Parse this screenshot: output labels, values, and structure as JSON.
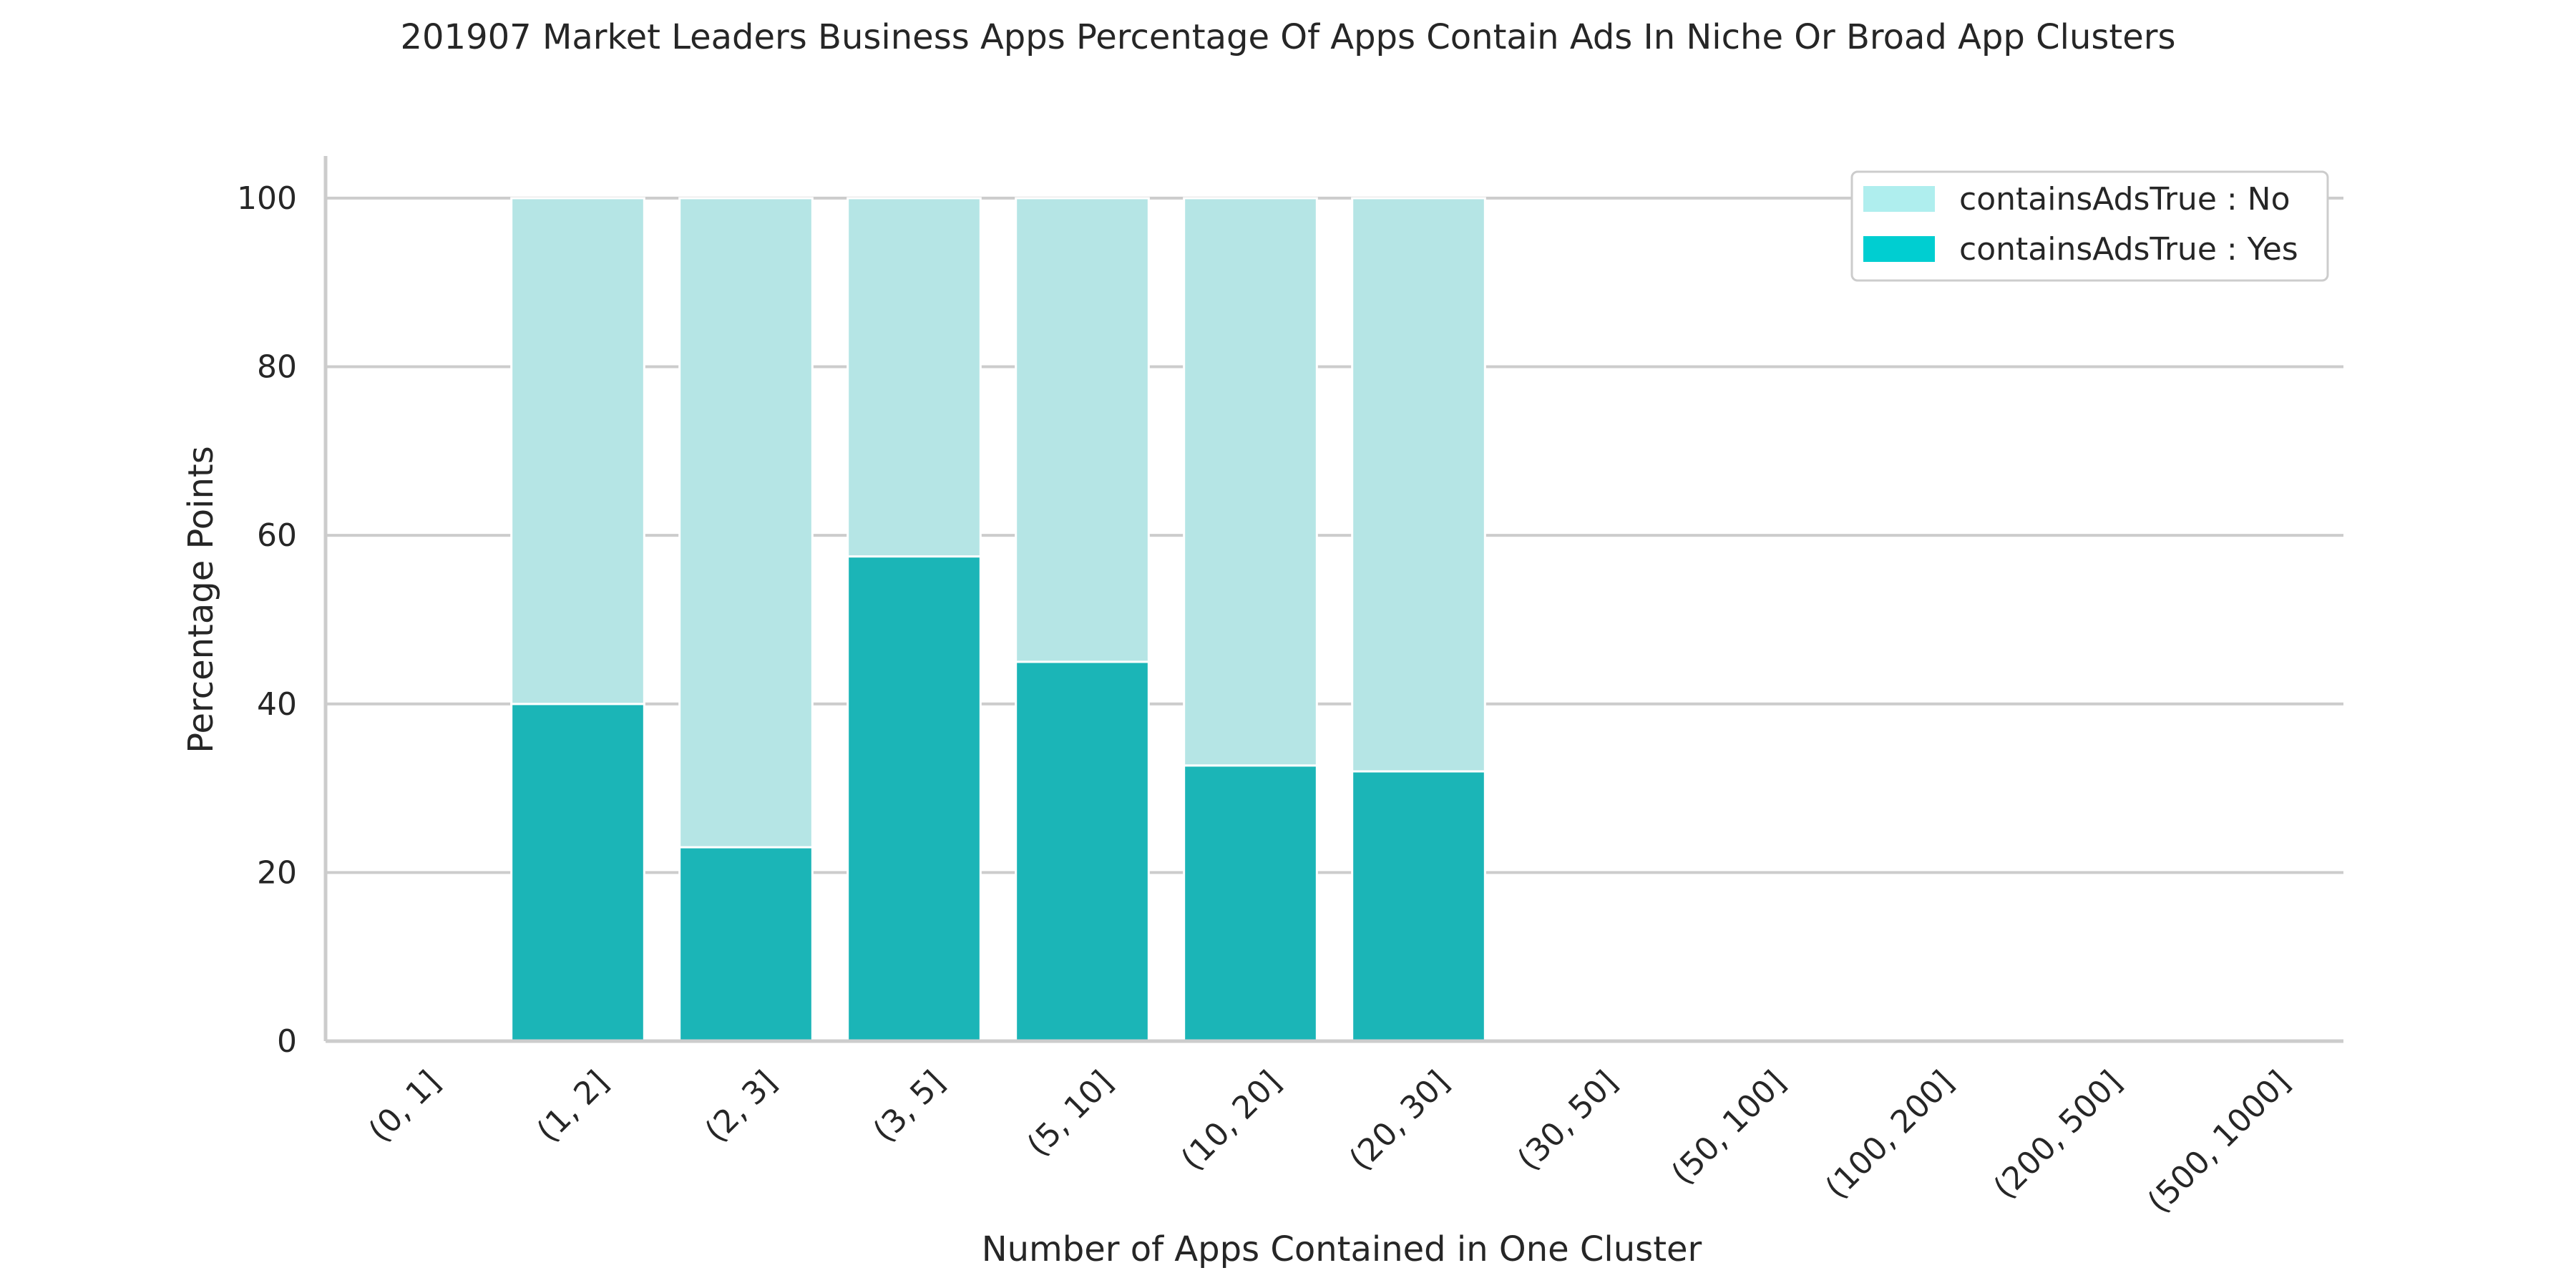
{
  "chart_data": {
    "type": "bar",
    "stacked": true,
    "title": "201907 Market Leaders Business Apps Percentage Of Apps Contain Ads In Niche Or Broad App Clusters",
    "xlabel": "Number of Apps Contained in One Cluster",
    "ylabel": "Percentage Points",
    "ylim": [
      0,
      105
    ],
    "yticks": [
      0,
      20,
      40,
      60,
      80,
      100
    ],
    "grid": true,
    "legend_position": "top-right",
    "categories": [
      "(0, 1]",
      "(1, 2]",
      "(2, 3]",
      "(3, 5]",
      "(5, 10]",
      "(10, 20]",
      "(20, 30]",
      "(30, 50]",
      "(50, 100]",
      "(100, 200]",
      "(200, 500]",
      "(500, 1000]"
    ],
    "series": [
      {
        "name": "containsAdsTrue : Yes",
        "color": "#1bb5b7",
        "legend_color": "#00ced1",
        "values": [
          0,
          40,
          23,
          57.5,
          45,
          32.7,
          32,
          0,
          0,
          0,
          0,
          0
        ]
      },
      {
        "name": "containsAdsTrue : No",
        "color": "#b5e5e5",
        "legend_color": "#afeeee",
        "values": [
          0,
          60,
          77,
          42.5,
          55,
          67.3,
          68,
          0,
          0,
          0,
          0,
          0
        ]
      }
    ],
    "legend_order": [
      1,
      0
    ]
  }
}
